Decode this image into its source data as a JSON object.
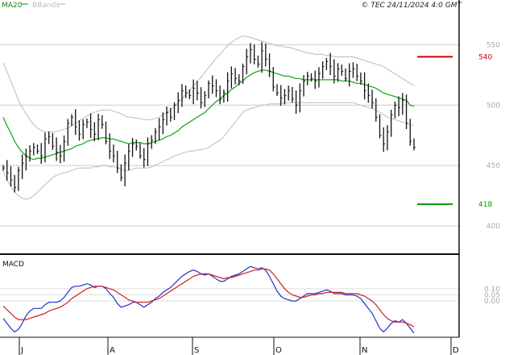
{
  "header": {
    "legend_ma20": "MA20",
    "legend_bbands": "BBands",
    "copyright": "© TEC 24/11/2024 4:0 GMT"
  },
  "chart_data": [
    {
      "type": "ohlc",
      "ylim": [
        378,
        575
      ],
      "yticks": [
        400,
        450,
        500,
        550
      ],
      "xlabels": [
        "J",
        "A",
        "S",
        "O",
        "N",
        "D"
      ],
      "grid": true,
      "colors": {
        "bars": "#111111",
        "ma20": "#22aa22",
        "bbands": "#bbbbbb",
        "resistance": "#cc0000",
        "support": "#009900"
      },
      "close": [
        448,
        444,
        438,
        432,
        446,
        452,
        458,
        462,
        465,
        462,
        458,
        472,
        474,
        466,
        461,
        458,
        470,
        485,
        490,
        482,
        476,
        484,
        486,
        480,
        476,
        488,
        484,
        470,
        462,
        458,
        448,
        440,
        452,
        462,
        468,
        466,
        458,
        455,
        468,
        471,
        478,
        482,
        488,
        494,
        490,
        500,
        504,
        512,
        510,
        508,
        514,
        510,
        502,
        508,
        518,
        516,
        512,
        505,
        510,
        520,
        526,
        522,
        520,
        532,
        540,
        546,
        538,
        534,
        545,
        538,
        528,
        515,
        510,
        506,
        508,
        512,
        505,
        500,
        512,
        520,
        524,
        522,
        520,
        526,
        532,
        536,
        532,
        524,
        530,
        528,
        522,
        528,
        530,
        524,
        520,
        512,
        508,
        502,
        490,
        475,
        468,
        478,
        492,
        500,
        498,
        504,
        485,
        470,
        465
      ],
      "ma20": [
        490,
        483,
        477,
        470,
        465,
        461,
        458,
        456,
        455,
        456,
        456,
        457,
        458,
        459,
        460,
        461,
        462,
        463,
        464,
        466,
        467,
        468,
        470,
        471,
        472,
        472,
        473,
        473,
        472,
        472,
        471,
        470,
        469,
        468,
        469,
        469,
        469,
        468,
        468,
        469,
        470,
        471,
        472,
        474,
        475,
        477,
        479,
        482,
        484,
        486,
        488,
        490,
        492,
        494,
        497,
        500,
        503,
        505,
        508,
        510,
        513,
        515,
        518,
        520,
        523,
        525,
        527,
        528,
        529,
        529,
        528,
        527,
        526,
        525,
        524,
        524,
        523,
        522,
        522,
        521,
        521,
        521,
        521,
        521,
        521,
        521,
        521,
        521,
        521,
        520,
        520,
        520,
        519,
        518,
        518,
        517,
        516,
        515,
        514,
        512,
        510,
        509,
        508,
        507,
        506,
        505,
        504,
        500,
        499
      ],
      "bb_upper": [
        535,
        528,
        520,
        512,
        504,
        498,
        493,
        488,
        484,
        481,
        479,
        478,
        478,
        478,
        478,
        479,
        480,
        481,
        483,
        485,
        487,
        489,
        491,
        493,
        494,
        495,
        496,
        496,
        496,
        495,
        494,
        493,
        491,
        490,
        490,
        489,
        489,
        488,
        488,
        488,
        489,
        490,
        492,
        494,
        496,
        499,
        502,
        505,
        509,
        512,
        516,
        520,
        523,
        527,
        531,
        535,
        539,
        542,
        546,
        549,
        552,
        554,
        556,
        557,
        557,
        556,
        555,
        554,
        553,
        552,
        551,
        550,
        549,
        549,
        548,
        548,
        547,
        546,
        545,
        544,
        543,
        543,
        542,
        542,
        542,
        541,
        541,
        540,
        540,
        540,
        540,
        540,
        540,
        539,
        538,
        537,
        536,
        535,
        534,
        533,
        532,
        530,
        528,
        526,
        524,
        522,
        520,
        518,
        516
      ],
      "bb_lower": [
        445,
        438,
        433,
        428,
        425,
        423,
        422,
        423,
        425,
        428,
        431,
        434,
        437,
        440,
        442,
        443,
        444,
        445,
        446,
        447,
        448,
        448,
        448,
        448,
        449,
        449,
        450,
        450,
        449,
        449,
        448,
        447,
        446,
        446,
        447,
        448,
        448,
        448,
        448,
        449,
        450,
        452,
        453,
        455,
        456,
        458,
        459,
        460,
        461,
        462,
        462,
        463,
        463,
        464,
        465,
        467,
        469,
        471,
        474,
        478,
        482,
        486,
        490,
        494,
        496,
        497,
        498,
        499,
        500,
        500,
        501,
        501,
        501,
        501,
        502,
        502,
        502,
        502,
        502,
        502,
        502,
        502,
        502,
        502,
        502,
        502,
        502,
        502,
        502,
        502,
        502,
        502,
        502,
        501,
        500,
        499,
        498,
        497,
        496,
        494,
        492,
        490,
        489,
        488,
        487,
        486,
        485,
        484,
        483
      ],
      "levels": [
        {
          "name": "resistance",
          "value": 540,
          "label": "540",
          "color": "#cc0000"
        },
        {
          "name": "support",
          "value": 418,
          "label": "418",
          "color": "#009900"
        }
      ]
    },
    {
      "type": "line",
      "title": "MACD",
      "ylim": [
        -0.28,
        0.36
      ],
      "yticks": [
        0.1,
        0.05,
        0.0
      ],
      "ytick_labels": [
        "0.10",
        "0.05",
        "0.00"
      ],
      "series": [
        {
          "color": "#2233cc",
          "values": [
            -0.14,
            -0.18,
            -0.22,
            -0.25,
            -0.23,
            -0.18,
            -0.12,
            -0.08,
            -0.06,
            -0.06,
            -0.06,
            -0.03,
            -0.01,
            -0.01,
            -0.01,
            0.0,
            0.03,
            0.07,
            0.11,
            0.12,
            0.12,
            0.13,
            0.14,
            0.13,
            0.11,
            0.12,
            0.12,
            0.1,
            0.06,
            0.03,
            -0.02,
            -0.05,
            -0.04,
            -0.03,
            -0.01,
            -0.01,
            -0.03,
            -0.05,
            -0.03,
            -0.01,
            0.02,
            0.04,
            0.07,
            0.09,
            0.11,
            0.14,
            0.17,
            0.2,
            0.22,
            0.24,
            0.25,
            0.24,
            0.22,
            0.21,
            0.22,
            0.2,
            0.18,
            0.16,
            0.16,
            0.18,
            0.2,
            0.21,
            0.22,
            0.24,
            0.26,
            0.28,
            0.27,
            0.26,
            0.27,
            0.25,
            0.2,
            0.14,
            0.08,
            0.04,
            0.02,
            0.01,
            0.0,
            0.0,
            0.02,
            0.04,
            0.06,
            0.06,
            0.06,
            0.07,
            0.08,
            0.09,
            0.08,
            0.06,
            0.06,
            0.06,
            0.05,
            0.05,
            0.05,
            0.04,
            0.02,
            -0.02,
            -0.06,
            -0.1,
            -0.16,
            -0.22,
            -0.25,
            -0.22,
            -0.18,
            -0.16,
            -0.17,
            -0.15,
            -0.18,
            -0.22,
            -0.26
          ]
        },
        {
          "color": "#cc2222",
          "values": [
            -0.04,
            -0.07,
            -0.1,
            -0.13,
            -0.15,
            -0.15,
            -0.15,
            -0.14,
            -0.13,
            -0.12,
            -0.11,
            -0.1,
            -0.08,
            -0.07,
            -0.06,
            -0.05,
            -0.03,
            -0.01,
            0.02,
            0.04,
            0.06,
            0.08,
            0.1,
            0.11,
            0.12,
            0.12,
            0.12,
            0.11,
            0.1,
            0.09,
            0.07,
            0.05,
            0.03,
            0.01,
            0.0,
            -0.01,
            -0.01,
            -0.01,
            -0.01,
            0.0,
            0.01,
            0.02,
            0.04,
            0.06,
            0.08,
            0.1,
            0.12,
            0.14,
            0.16,
            0.18,
            0.2,
            0.21,
            0.22,
            0.22,
            0.22,
            0.21,
            0.2,
            0.19,
            0.18,
            0.19,
            0.19,
            0.2,
            0.21,
            0.22,
            0.23,
            0.24,
            0.25,
            0.25,
            0.26,
            0.26,
            0.25,
            0.22,
            0.18,
            0.14,
            0.1,
            0.07,
            0.05,
            0.04,
            0.03,
            0.03,
            0.04,
            0.05,
            0.05,
            0.06,
            0.06,
            0.07,
            0.07,
            0.07,
            0.07,
            0.07,
            0.06,
            0.06,
            0.06,
            0.06,
            0.05,
            0.04,
            0.02,
            0.0,
            -0.03,
            -0.07,
            -0.11,
            -0.14,
            -0.16,
            -0.17,
            -0.17,
            -0.17,
            -0.18,
            -0.19,
            -0.21
          ]
        }
      ]
    }
  ]
}
